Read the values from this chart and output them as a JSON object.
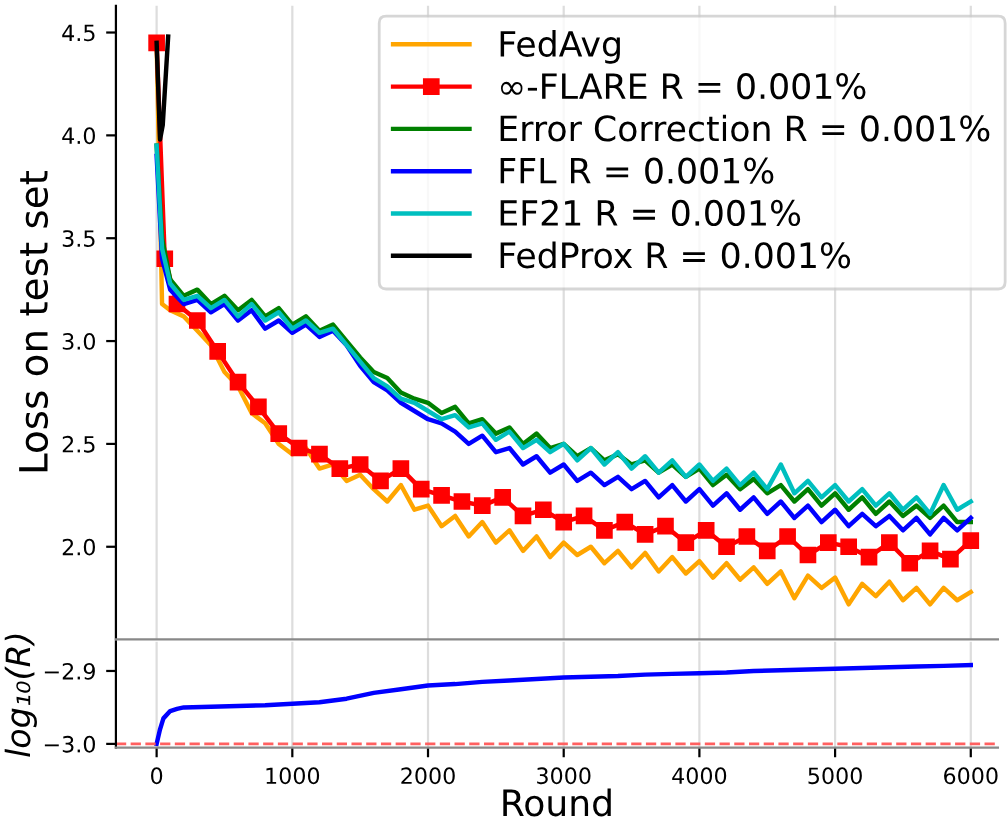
{
  "chart_data": [
    {
      "type": "line",
      "ylabel": "Loss on test set",
      "xlim": [
        -300,
        6200
      ],
      "ylim": [
        1.55,
        4.63
      ],
      "yticks": [
        {
          "value": 2.0,
          "label": "2.0"
        },
        {
          "value": 2.5,
          "label": "2.5"
        },
        {
          "value": 3.0,
          "label": "3.0"
        },
        {
          "value": 3.5,
          "label": "3.5"
        },
        {
          "value": 4.0,
          "label": "4.0"
        },
        {
          "value": 4.5,
          "label": "4.5"
        }
      ],
      "xticks": [
        0,
        1000,
        2000,
        3000,
        4000,
        5000,
        6000
      ],
      "tick_labels": "y",
      "grid": "x",
      "legend": "top right",
      "x": [
        0,
        40,
        100,
        200,
        300,
        400,
        500,
        600,
        700,
        800,
        900,
        1000,
        1100,
        1200,
        1300,
        1400,
        1500,
        1600,
        1700,
        1800,
        1900,
        2000,
        2100,
        2200,
        2300,
        2400,
        2500,
        2600,
        2700,
        2800,
        2900,
        3000,
        3100,
        3200,
        3300,
        3400,
        3500,
        3600,
        3700,
        3800,
        3900,
        4000,
        4100,
        4200,
        4300,
        4400,
        4500,
        4600,
        4700,
        4800,
        4900,
        5000,
        5100,
        5200,
        5300,
        5400,
        5500,
        5600,
        5700,
        5800,
        5900,
        6000
      ],
      "series": [
        {
          "name": "FedAvg",
          "color": "#ffa500",
          "values": [
            4.45,
            3.18,
            3.15,
            3.12,
            3.05,
            2.98,
            2.85,
            2.78,
            2.65,
            2.6,
            2.5,
            2.45,
            2.48,
            2.38,
            2.4,
            2.32,
            2.35,
            2.28,
            2.22,
            2.3,
            2.18,
            2.2,
            2.1,
            2.15,
            2.05,
            2.12,
            2.02,
            2.08,
            1.98,
            2.05,
            1.95,
            2.02,
            1.96,
            2.0,
            1.92,
            1.98,
            1.9,
            1.97,
            1.88,
            1.95,
            1.87,
            1.93,
            1.85,
            1.92,
            1.84,
            1.9,
            1.82,
            1.88,
            1.75,
            1.86,
            1.8,
            1.85,
            1.72,
            1.82,
            1.76,
            1.83,
            1.74,
            1.8,
            1.72,
            1.8,
            1.74,
            1.78
          ]
        },
        {
          "name": "∞-FLARE R = 0.001%",
          "color": "#ff0000",
          "marker": "square",
          "x": [
            0,
            60,
            150,
            300,
            450,
            600,
            750,
            900,
            1050,
            1200,
            1350,
            1500,
            1650,
            1800,
            1950,
            2100,
            2250,
            2400,
            2550,
            2700,
            2850,
            3000,
            3150,
            3300,
            3450,
            3600,
            3750,
            3900,
            4050,
            4200,
            4350,
            4500,
            4650,
            4800,
            4950,
            5100,
            5250,
            5400,
            5550,
            5700,
            5850,
            6000
          ],
          "values": [
            4.45,
            3.4,
            3.18,
            3.1,
            2.95,
            2.8,
            2.68,
            2.55,
            2.48,
            2.45,
            2.38,
            2.4,
            2.32,
            2.38,
            2.28,
            2.25,
            2.22,
            2.2,
            2.24,
            2.15,
            2.18,
            2.12,
            2.15,
            2.08,
            2.12,
            2.06,
            2.1,
            2.02,
            2.08,
            2.0,
            2.05,
            1.98,
            2.05,
            1.96,
            2.02,
            2.0,
            1.95,
            2.02,
            1.92,
            1.98,
            1.94,
            2.03
          ]
        },
        {
          "name": "Error Correction R = 0.001%",
          "color": "#008000",
          "values": [
            3.95,
            3.5,
            3.3,
            3.22,
            3.25,
            3.18,
            3.22,
            3.15,
            3.2,
            3.12,
            3.16,
            3.08,
            3.12,
            3.05,
            3.08,
            3.0,
            2.92,
            2.85,
            2.82,
            2.75,
            2.72,
            2.7,
            2.65,
            2.68,
            2.6,
            2.62,
            2.55,
            2.58,
            2.5,
            2.55,
            2.48,
            2.5,
            2.44,
            2.48,
            2.42,
            2.45,
            2.4,
            2.42,
            2.36,
            2.4,
            2.34,
            2.38,
            2.3,
            2.35,
            2.28,
            2.33,
            2.26,
            2.3,
            2.22,
            2.28,
            2.2,
            2.26,
            2.18,
            2.24,
            2.16,
            2.22,
            2.15,
            2.2,
            2.14,
            2.2,
            2.12,
            2.12
          ]
        },
        {
          "name": "FFL R = 0.001%",
          "color": "#0000ff",
          "values": [
            3.9,
            3.4,
            3.25,
            3.18,
            3.2,
            3.14,
            3.18,
            3.1,
            3.15,
            3.06,
            3.1,
            3.04,
            3.08,
            3.02,
            3.05,
            2.98,
            2.88,
            2.8,
            2.76,
            2.7,
            2.66,
            2.62,
            2.6,
            2.56,
            2.5,
            2.54,
            2.46,
            2.48,
            2.4,
            2.44,
            2.36,
            2.4,
            2.32,
            2.36,
            2.3,
            2.34,
            2.28,
            2.32,
            2.24,
            2.3,
            2.22,
            2.28,
            2.2,
            2.26,
            2.18,
            2.24,
            2.16,
            2.22,
            2.14,
            2.2,
            2.12,
            2.18,
            2.1,
            2.16,
            2.1,
            2.15,
            2.08,
            2.14,
            2.06,
            2.14,
            2.08,
            2.14
          ]
        },
        {
          "name": "EF21 R = 0.001%",
          "color": "#00bfbf",
          "values": [
            3.95,
            3.45,
            3.28,
            3.2,
            3.22,
            3.16,
            3.2,
            3.12,
            3.18,
            3.1,
            3.14,
            3.06,
            3.1,
            3.04,
            3.06,
            2.98,
            2.9,
            2.82,
            2.78,
            2.72,
            2.7,
            2.66,
            2.62,
            2.64,
            2.58,
            2.6,
            2.52,
            2.56,
            2.48,
            2.52,
            2.46,
            2.5,
            2.42,
            2.48,
            2.4,
            2.46,
            2.38,
            2.44,
            2.36,
            2.42,
            2.34,
            2.4,
            2.32,
            2.38,
            2.3,
            2.36,
            2.28,
            2.4,
            2.26,
            2.32,
            2.24,
            2.3,
            2.22,
            2.28,
            2.2,
            2.26,
            2.18,
            2.24,
            2.16,
            2.3,
            2.18,
            2.22
          ]
        },
        {
          "name": "FedProx R = 0.001%",
          "color": "#000000",
          "x": [
            0,
            25,
            45,
            85
          ],
          "values": [
            4.45,
            3.98,
            4.05,
            4.48
          ]
        }
      ]
    },
    {
      "type": "line",
      "xlabel": "Round",
      "ylabel": "log₁₀(R)",
      "xlim": [
        -300,
        6200
      ],
      "ylim": [
        -3.005,
        -2.86
      ],
      "xticks": [
        0,
        1000,
        2000,
        3000,
        4000,
        5000,
        6000
      ],
      "yticks": [
        {
          "value": -3.0,
          "label": "−3.0"
        },
        {
          "value": -2.9,
          "label": "−2.9"
        }
      ],
      "grid": "x",
      "ref_lines": [
        {
          "axis": "y",
          "value": -3.0,
          "color": "#ff6060",
          "line_style": "dashed"
        }
      ],
      "x": [
        0,
        25,
        50,
        100,
        150,
        200,
        400,
        600,
        800,
        1000,
        1200,
        1400,
        1600,
        1800,
        2000,
        2200,
        2400,
        2600,
        2800,
        3000,
        3200,
        3400,
        3600,
        3800,
        4000,
        4200,
        4400,
        4600,
        4800,
        5000,
        5200,
        5400,
        5600,
        5800,
        6000
      ],
      "series": [
        {
          "color": "#0000ff",
          "values": [
            -3.0,
            -2.98,
            -2.965,
            -2.955,
            -2.952,
            -2.95,
            -2.949,
            -2.948,
            -2.947,
            -2.945,
            -2.943,
            -2.938,
            -2.93,
            -2.925,
            -2.92,
            -2.918,
            -2.915,
            -2.913,
            -2.911,
            -2.909,
            -2.908,
            -2.907,
            -2.905,
            -2.904,
            -2.903,
            -2.902,
            -2.9,
            -2.899,
            -2.898,
            -2.897,
            -2.896,
            -2.895,
            -2.894,
            -2.893,
            -2.892
          ]
        }
      ]
    }
  ]
}
